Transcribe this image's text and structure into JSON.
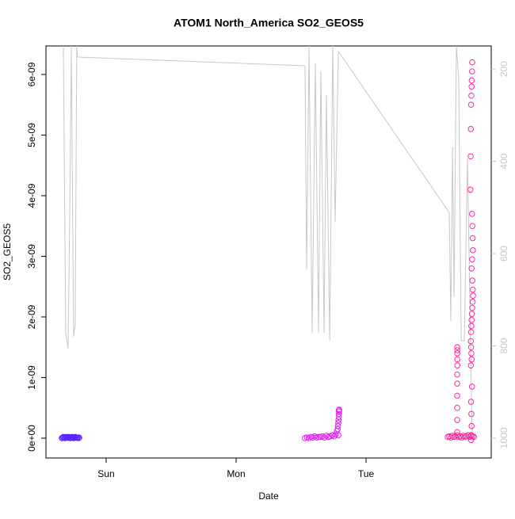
{
  "chart_data": {
    "type": "scatter",
    "title": "ATOM1 North_America SO2_GEOS5",
    "x_label": "Date",
    "y_label": "SO2_GEOS5",
    "xlim": [
      -0.463,
      2.963
    ],
    "xticks": [
      {
        "value": 0,
        "label": "Sun"
      },
      {
        "value": 1,
        "label": "Mon"
      },
      {
        "value": 2,
        "label": "Tue"
      }
    ],
    "ylim": [
      -3.27e-10,
      6.47e-09
    ],
    "yticks": [
      {
        "value": 0,
        "label": "0e+00"
      },
      {
        "value": 1e-09,
        "label": "1e-09"
      },
      {
        "value": 2e-09,
        "label": "2e-09"
      },
      {
        "value": 3e-09,
        "label": "3e-09"
      },
      {
        "value": 4e-09,
        "label": "4e-09"
      },
      {
        "value": 5e-09,
        "label": "5e-09"
      },
      {
        "value": 6e-09,
        "label": "6e-09"
      }
    ],
    "y2lim": [
      1043,
      150
    ],
    "y2ticks": [
      200,
      400,
      600,
      800,
      1000
    ],
    "series": [
      {
        "type": "scatter",
        "color": "#5a22ff",
        "x": [
          -0.341,
          -0.335,
          -0.329,
          -0.323,
          -0.317,
          -0.311,
          -0.305,
          -0.299,
          -0.293,
          -0.287,
          -0.28,
          -0.274,
          -0.268,
          -0.262,
          -0.256,
          -0.25,
          -0.244,
          -0.238,
          -0.232,
          -0.226,
          -0.22,
          -0.213,
          -0.207
        ],
        "values": [
          0,
          1e-11,
          2e-11,
          1e-11,
          0,
          1.5e-11,
          2e-11,
          1e-11,
          5e-12,
          2e-11,
          1e-11,
          0,
          1.5e-11,
          2e-11,
          1e-11,
          0,
          1e-11,
          2e-11,
          1e-11,
          5e-12,
          1e-11,
          0,
          1e-11
        ]
      },
      {
        "type": "scatter",
        "color": "#e020f0",
        "x": [
          1.53,
          1.545,
          1.56,
          1.575,
          1.59,
          1.605,
          1.62,
          1.635,
          1.65,
          1.665,
          1.68,
          1.695,
          1.71,
          1.725,
          1.74,
          1.755,
          1.765,
          1.775,
          1.782,
          1.784,
          1.786,
          1.788,
          1.79,
          1.791,
          1.792,
          1.793,
          1.79,
          1.787
        ],
        "values": [
          0,
          1e-11,
          0,
          2e-11,
          1e-11,
          3e-11,
          1e-11,
          2e-11,
          2e-11,
          3e-11,
          1e-11,
          4e-11,
          2e-11,
          3e-11,
          5e-11,
          3e-11,
          6e-11,
          1.2e-10,
          1.5e-10,
          2e-10,
          2.5e-10,
          3e-10,
          3.5e-10,
          4e-10,
          4.4e-10,
          4.7e-10,
          4.6e-10,
          5e-11
        ]
      },
      {
        "type": "scatter",
        "color": "#ff2aa0",
        "x": [
          2.628,
          2.64,
          2.652,
          2.664,
          2.676,
          2.688,
          2.7,
          2.712,
          2.724,
          2.736,
          2.748,
          2.76,
          2.772,
          2.784,
          2.796,
          2.808,
          2.82,
          2.83,
          2.701,
          2.701,
          2.701,
          2.701,
          2.701,
          2.701,
          2.702,
          2.702,
          2.702,
          2.702,
          2.702,
          2.817,
          2.815,
          2.813,
          2.812,
          2.81,
          2.808,
          2.806,
          2.805,
          2.803,
          2.815,
          2.818,
          2.82,
          2.822,
          2.816,
          2.812,
          2.818,
          2.821,
          2.823,
          2.82,
          2.817,
          2.814,
          2.812,
          2.81,
          2.808,
          2.806,
          2.808,
          2.81,
          2.812,
          2.815,
          2.808,
          2.81,
          2.812,
          2.81,
          2.808,
          2.806
        ],
        "values": [
          2e-11,
          3e-11,
          1e-11,
          4e-11,
          2e-11,
          3e-11,
          5e-11,
          2e-11,
          3e-11,
          1e-11,
          4e-11,
          2e-11,
          3e-11,
          5e-11,
          2e-11,
          4e-11,
          3e-11,
          2e-11,
          1e-10,
          3e-10,
          5e-10,
          7e-10,
          9e-10,
          1.05e-09,
          1.2e-09,
          1.3e-09,
          1.4e-09,
          1.5e-09,
          1.45e-09,
          6.2e-09,
          6.05e-09,
          5.9e-09,
          5.8e-09,
          5.65e-09,
          5.5e-09,
          5.1e-09,
          4.65e-09,
          4.1e-09,
          3.7e-09,
          3.5e-09,
          3.3e-09,
          3.1e-09,
          2.95e-09,
          2.8e-09,
          2.6e-09,
          2.45e-09,
          2.35e-09,
          2.25e-09,
          2.15e-09,
          2.05e-09,
          1.95e-09,
          1.85e-09,
          1.75e-09,
          1.6e-09,
          1.5e-09,
          1.4e-09,
          1.3e-09,
          8.5e-10,
          6e-10,
          4e-10,
          2e-10,
          5e-11,
          -3e-11,
          1.2e-09
        ]
      },
      {
        "type": "line",
        "axis": "y2",
        "color": "#c8c8c8",
        "x": [
          -0.329,
          -0.311,
          -0.293,
          -0.28,
          -0.268,
          -0.25,
          -0.238,
          -0.226,
          -0.22,
          1.53,
          1.543,
          1.561,
          1.585,
          1.61,
          1.634,
          1.652,
          1.677,
          1.695,
          1.72,
          1.744,
          1.762,
          1.787,
          2.64,
          2.652,
          2.665,
          2.677,
          2.695,
          2.713,
          2.732,
          2.756,
          2.78,
          2.817
        ],
        "values": [
          150,
          772,
          806,
          514,
          150,
          780,
          754,
          150,
          174,
          193,
          634,
          150,
          772,
          188,
          772,
          205,
          772,
          257,
          789,
          150,
          531,
          162,
          511,
          746,
          368,
          694,
          150,
          222,
          789,
          789,
          394,
          1012
        ]
      }
    ]
  }
}
